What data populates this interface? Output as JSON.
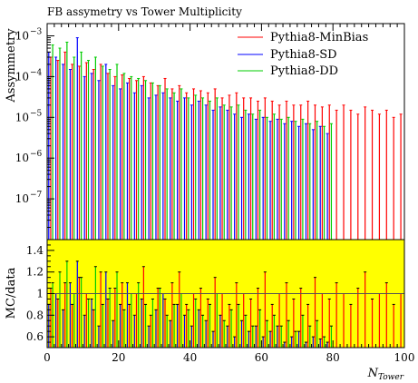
{
  "chart_data": [
    {
      "type": "bar",
      "panel": "main",
      "title": "FB assymetry vs Tower Multiplicity",
      "xlabel": "N_Tower",
      "ylabel": "Assymmetry",
      "x_range": [
        0,
        100
      ],
      "y_range": [
        1e-08,
        0.002
      ],
      "y_scale": "log",
      "grid": false,
      "legend_position": "top-right",
      "y_tick_labels": [
        {
          "base": "10",
          "exp": "−3",
          "value": 0.001
        },
        {
          "base": "10",
          "exp": "−4",
          "value": 0.0001
        },
        {
          "base": "10",
          "exp": "−5",
          "value": 1e-05
        },
        {
          "base": "10",
          "exp": "−6",
          "value": 1e-06
        },
        {
          "base": "10",
          "exp": "−7",
          "value": 1e-07
        }
      ],
      "x_tick_labels": [
        "0",
        "20",
        "40",
        "60",
        "80",
        "100"
      ],
      "series": [
        {
          "name": "Pythia8-MinBias",
          "color": "#ff0000",
          "x": [
            1,
            3,
            5,
            7,
            9,
            11,
            13,
            15,
            17,
            19,
            21,
            23,
            25,
            27,
            29,
            31,
            33,
            35,
            37,
            39,
            41,
            43,
            45,
            47,
            49,
            51,
            53,
            55,
            57,
            59,
            61,
            63,
            65,
            67,
            69,
            71,
            73,
            75,
            77,
            79,
            81,
            83,
            85,
            87,
            89,
            91,
            93,
            95,
            97,
            99
          ],
          "values": [
            0.0003,
            0.00025,
            0.0004,
            0.0002,
            0.00018,
            0.00022,
            0.00015,
            0.0002,
            0.00012,
            0.0001,
            0.00011,
            9e-05,
            8e-05,
            0.0001,
            7e-05,
            6e-05,
            9e-05,
            5e-05,
            6e-05,
            4e-05,
            5e-05,
            4.5e-05,
            4e-05,
            5e-05,
            3e-05,
            3.5e-05,
            4e-05,
            3e-05,
            3e-05,
            2.5e-05,
            3e-05,
            2.5e-05,
            2e-05,
            2.5e-05,
            2e-05,
            2e-05,
            2.5e-05,
            2e-05,
            1.8e-05,
            2e-05,
            1.5e-05,
            2e-05,
            1.5e-05,
            1.2e-05,
            1.8e-05,
            1.5e-05,
            1.2e-05,
            1.5e-05,
            1e-05,
            1.2e-05
          ]
        },
        {
          "name": "Pythia8-SD",
          "color": "#0000ff",
          "x": [
            1,
            3,
            5,
            7,
            9,
            11,
            13,
            15,
            17,
            19,
            21,
            23,
            25,
            27,
            29,
            31,
            33,
            35,
            37,
            39,
            41,
            43,
            45,
            47,
            49,
            51,
            53,
            55,
            57,
            59,
            61,
            63,
            65,
            67,
            69,
            71,
            73,
            75,
            77,
            79
          ],
          "values": [
            0.0004,
            0.0003,
            0.0002,
            0.00015,
            0.0009,
            0.0001,
            0.00012,
            8e-05,
            0.0002,
            6e-05,
            5e-05,
            7e-05,
            4e-05,
            6e-05,
            3e-05,
            3.5e-05,
            4e-05,
            3e-05,
            2.5e-05,
            3e-05,
            2e-05,
            2.5e-05,
            2e-05,
            1.5e-05,
            1.8e-05,
            1.5e-05,
            1.2e-05,
            1e-05,
            1.2e-05,
            9e-06,
            1e-05,
            8e-06,
            9e-06,
            7e-06,
            8e-06,
            6e-06,
            7e-06,
            5e-06,
            6e-06,
            4e-06
          ]
        },
        {
          "name": "Pythia8-DD",
          "color": "#00cc00",
          "x": [
            1,
            3,
            5,
            7,
            9,
            11,
            13,
            15,
            17,
            19,
            21,
            23,
            25,
            27,
            29,
            31,
            33,
            35,
            37,
            39,
            41,
            43,
            45,
            47,
            49,
            51,
            53,
            55,
            57,
            59,
            61,
            63,
            65,
            67,
            69,
            71,
            73,
            75,
            77,
            79
          ],
          "values": [
            0.0006,
            0.0005,
            0.0007,
            0.0003,
            0.0004,
            0.00025,
            0.0003,
            0.00018,
            0.00015,
            0.0002,
            0.00012,
            0.0001,
            9e-05,
            8e-05,
            7e-05,
            6e-05,
            5e-05,
            4e-05,
            5e-05,
            3e-05,
            3.5e-05,
            3e-05,
            2.5e-05,
            3e-05,
            2e-05,
            1.8e-05,
            2e-05,
            1.5e-05,
            1.2e-05,
            1.5e-05,
            1e-05,
            1.2e-05,
            9e-06,
            1e-05,
            8e-06,
            9e-06,
            7e-06,
            8e-06,
            6e-06,
            7e-06
          ]
        }
      ]
    },
    {
      "type": "bar",
      "panel": "ratio",
      "xlabel": "N_Tower",
      "ylabel": "MC/data",
      "x_range": [
        0,
        100
      ],
      "y_range": [
        0.5,
        1.5
      ],
      "band_color": "#ffff00",
      "reference_line": 1,
      "y_tick_labels": [
        "1.4",
        "1.2",
        "1",
        "0.8",
        "0.6"
      ],
      "series": [
        {
          "name": "Pythia8-MinBias",
          "color": "#ff0000",
          "x": [
            1,
            3,
            5,
            7,
            9,
            11,
            13,
            15,
            17,
            19,
            21,
            23,
            25,
            27,
            29,
            31,
            33,
            35,
            37,
            39,
            41,
            43,
            45,
            47,
            49,
            51,
            53,
            55,
            57,
            59,
            61,
            63,
            65,
            67,
            69,
            71,
            73,
            75,
            77,
            79,
            81,
            83,
            85,
            87,
            89,
            91,
            93,
            95,
            97,
            99
          ],
          "values": [
            1.05,
            0.95,
            1.1,
            0.9,
            1.15,
            1.0,
            0.85,
            1.2,
            0.95,
            1.05,
            1.1,
            0.9,
            1.0,
            1.25,
            0.8,
            1.05,
            0.95,
            1.1,
            1.2,
            0.9,
            1.0,
            1.05,
            0.95,
            1.15,
            1.0,
            0.9,
            1.1,
            1.0,
            0.95,
            1.05,
            1.2,
            0.9,
            1.0,
            1.1,
            0.95,
            1.05,
            0.9,
            1.15,
            1.0,
            0.95,
            1.1,
            1.0,
            0.9,
            1.05,
            1.2,
            0.95,
            1.0,
            1.1,
            0.9,
            1.0
          ]
        },
        {
          "name": "Pythia8-SD",
          "color": "#0000ff",
          "x": [
            1,
            3,
            5,
            7,
            9,
            11,
            13,
            15,
            17,
            19,
            21,
            23,
            25,
            27,
            29,
            31,
            33,
            35,
            37,
            39,
            41,
            43,
            45,
            47,
            49,
            51,
            53,
            55,
            57,
            59,
            61,
            63,
            65,
            67,
            69,
            71,
            73,
            75,
            77,
            79
          ],
          "values": [
            0.9,
            1.0,
            0.85,
            1.1,
            1.3,
            0.8,
            0.95,
            0.7,
            1.2,
            0.75,
            0.9,
            1.1,
            0.8,
            0.95,
            0.7,
            0.85,
            1.0,
            0.75,
            0.9,
            0.8,
            0.7,
            0.85,
            0.75,
            0.65,
            0.8,
            0.7,
            0.6,
            0.75,
            0.65,
            0.7,
            0.6,
            0.65,
            0.7,
            0.55,
            0.6,
            0.65,
            0.55,
            0.6,
            0.58,
            0.55
          ]
        },
        {
          "name": "Pythia8-DD",
          "color": "#00cc00",
          "x": [
            1,
            3,
            5,
            7,
            9,
            11,
            13,
            15,
            17,
            19,
            21,
            23,
            25,
            27,
            29,
            31,
            33,
            35,
            37,
            39,
            41,
            43,
            45,
            47,
            49,
            51,
            53,
            55,
            57,
            59,
            61,
            63,
            65,
            67,
            69,
            71,
            73,
            75,
            77,
            79
          ],
          "values": [
            1.1,
            1.2,
            1.3,
            1.0,
            1.15,
            0.95,
            1.25,
            0.9,
            1.05,
            1.2,
            0.85,
            1.0,
            1.1,
            0.9,
            0.95,
            1.05,
            0.8,
            0.9,
            1.0,
            0.85,
            0.95,
            0.8,
            0.9,
            1.0,
            0.75,
            0.85,
            0.9,
            0.8,
            0.7,
            0.85,
            0.75,
            0.8,
            0.7,
            0.75,
            0.65,
            0.8,
            0.7,
            0.75,
            0.6,
            0.7
          ]
        }
      ]
    }
  ]
}
